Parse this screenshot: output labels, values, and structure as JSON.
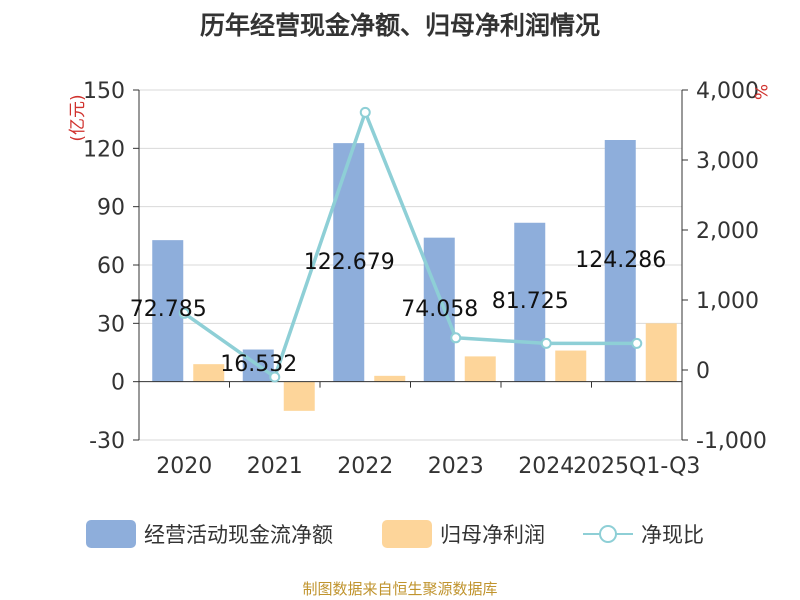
{
  "chart_data": {
    "type": "bar+line",
    "title": "历年经营现金净额、归母净利润情况",
    "categories": [
      "2020",
      "2021",
      "2022",
      "2023",
      "2024",
      "2025Q1-Q3"
    ],
    "series": [
      {
        "name": "经营活动现金流净额",
        "type": "bar",
        "axis": "left",
        "color": "#8eaedb",
        "values": [
          72.785,
          16.532,
          122.679,
          74.058,
          81.725,
          124.286
        ],
        "labels": [
          "72.785",
          "16.532",
          "122.679",
          "74.058",
          "81.725",
          "124.286"
        ]
      },
      {
        "name": "归母净利润",
        "type": "bar",
        "axis": "left",
        "color": "#fdd59a",
        "values": [
          9,
          -15,
          3,
          13,
          16,
          30
        ]
      },
      {
        "name": "净现比",
        "type": "line",
        "axis": "right",
        "color": "#8ecfd6",
        "values": [
          810,
          -100,
          3680,
          460,
          380,
          380
        ]
      }
    ],
    "y_left": {
      "label": "(亿元)",
      "min": -30,
      "max": 150,
      "ticks": [
        150,
        120,
        90,
        60,
        30,
        0,
        -30
      ],
      "tick_labels": [
        "150",
        "120",
        "90",
        "60",
        "30",
        "0",
        "-30"
      ]
    },
    "y_right": {
      "label": "%",
      "min": -1000,
      "max": 4000,
      "ticks": [
        4000,
        3000,
        2000,
        1000,
        0,
        -1000
      ],
      "tick_labels": [
        "4,000",
        "3,000",
        "2,000",
        "1,000",
        "0",
        "-1,000"
      ]
    },
    "legend": [
      "经营活动现金流净额",
      "归母净利润",
      "净现比"
    ],
    "legend_position": "bottom",
    "grid": true
  },
  "footer": {
    "source": "制图数据来自恒生聚源数据库"
  }
}
